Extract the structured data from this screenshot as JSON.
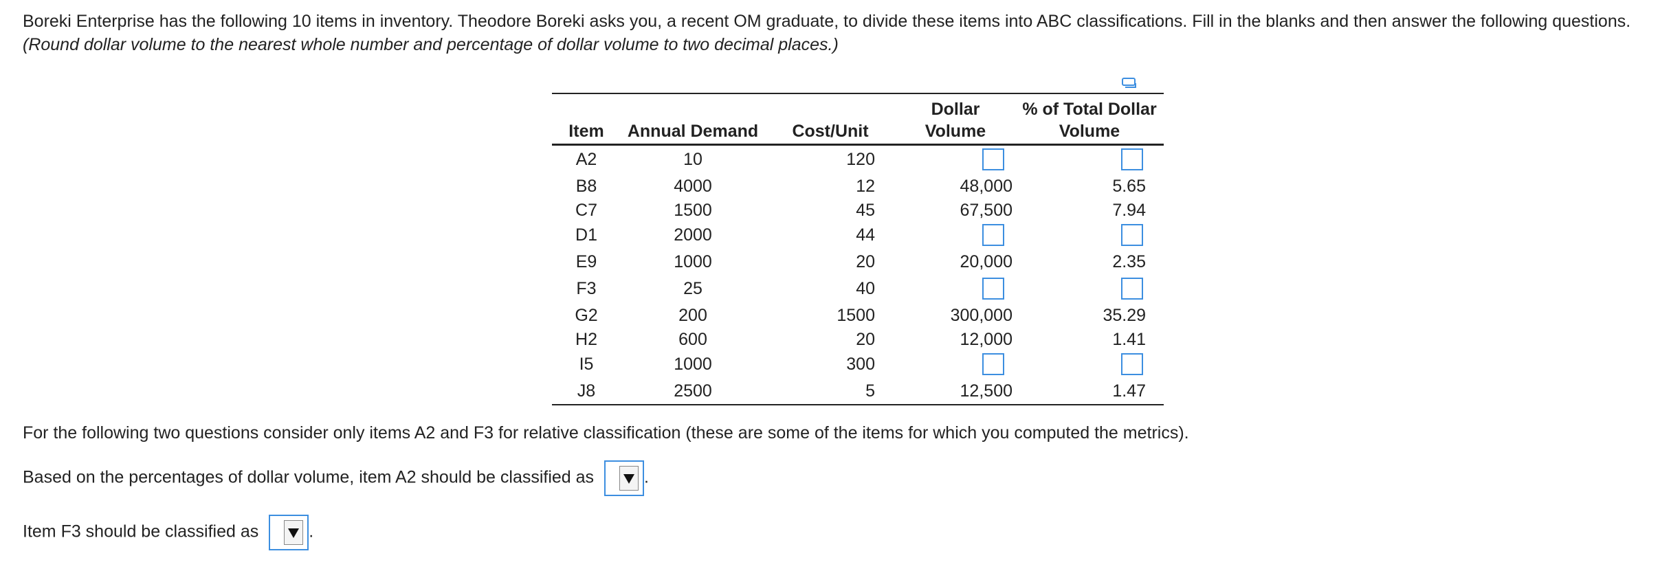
{
  "intro": {
    "text": "Boreki Enterprise has the following 10 items in inventory.  Theodore Boreki asks you, a recent OM graduate, to divide these items into ABC classifications. Fill in the blanks and then answer the following questions. ",
    "italic": "(Round dollar volume to the nearest whole number and percentage of dollar volume to two decimal places.)"
  },
  "table": {
    "headers": {
      "item": "Item",
      "demand": "Annual Demand",
      "cost": "Cost/Unit",
      "dv_top": "Dollar",
      "dv_bottom": "Volume",
      "pct_top": "% of Total Dollar",
      "pct_bottom": "Volume"
    },
    "rows": [
      {
        "item": "A2",
        "demand": "10",
        "cost": "120",
        "dv": "",
        "pct": ""
      },
      {
        "item": "B8",
        "demand": "4000",
        "cost": "12",
        "dv": "48,000",
        "pct": "5.65"
      },
      {
        "item": "C7",
        "demand": "1500",
        "cost": "45",
        "dv": "67,500",
        "pct": "7.94"
      },
      {
        "item": "D1",
        "demand": "2000",
        "cost": "44",
        "dv": "",
        "pct": ""
      },
      {
        "item": "E9",
        "demand": "1000",
        "cost": "20",
        "dv": "20,000",
        "pct": "2.35"
      },
      {
        "item": "F3",
        "demand": "25",
        "cost": "40",
        "dv": "",
        "pct": ""
      },
      {
        "item": "G2",
        "demand": "200",
        "cost": "1500",
        "dv": "300,000",
        "pct": "35.29"
      },
      {
        "item": "H2",
        "demand": "600",
        "cost": "20",
        "dv": "12,000",
        "pct": "1.41"
      },
      {
        "item": "I5",
        "demand": "1000",
        "cost": "300",
        "dv": "",
        "pct": ""
      },
      {
        "item": "J8",
        "demand": "2500",
        "cost": "5",
        "dv": "12,500",
        "pct": "1.47"
      }
    ]
  },
  "questions": {
    "note": "For the following two questions consider only items A2 and F3 for relative classification (these are some of the items for which you computed the metrics).",
    "q1": "Based on the percentages of dollar volume, item A2 should be classified as",
    "q2": "Item F3 should be classified as",
    "q1_value": "",
    "q2_value": "",
    "period": "."
  },
  "colors": {
    "input_border": "#3c8ee0"
  }
}
